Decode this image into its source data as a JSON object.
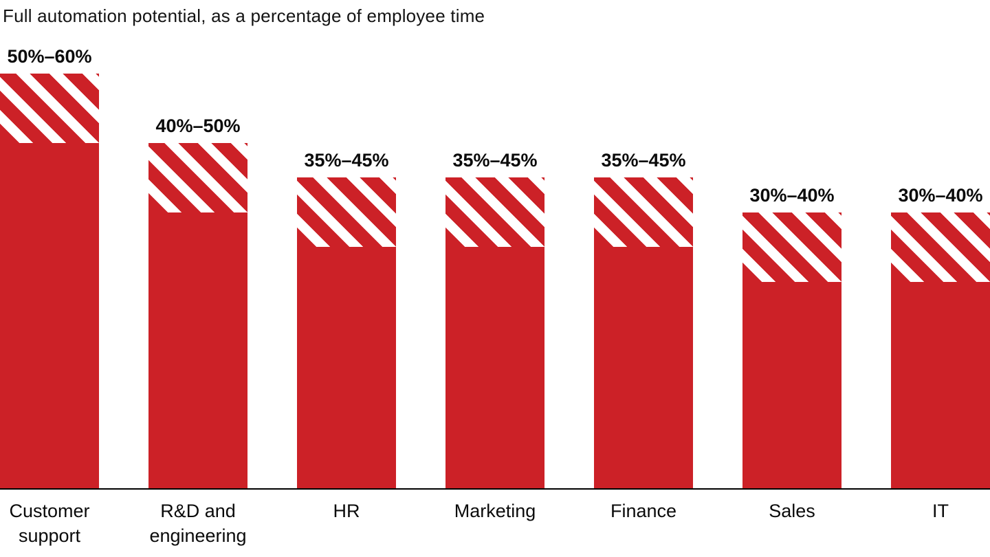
{
  "chart_data": {
    "type": "bar",
    "title": "Full automation potential, as a percentage of employee time",
    "categories": [
      "Customer\nsupport",
      "R&D and\nengineering",
      "HR",
      "Marketing",
      "Finance",
      "Sales",
      "IT"
    ],
    "series": [
      {
        "name": "Lower bound of automation potential (solid bar)",
        "values": [
          50,
          40,
          35,
          35,
          35,
          30,
          30
        ]
      },
      {
        "name": "Upper bound of automation potential (diagonal-striped cap)",
        "values": [
          60,
          50,
          45,
          45,
          45,
          40,
          40
        ]
      }
    ],
    "value_labels": [
      "50%–60%",
      "40%–50%",
      "35%–45%",
      "35%–45%",
      "35%–45%",
      "30%–40%",
      "30%–40%"
    ],
    "unit": "% of employee time",
    "xlabel": "",
    "ylabel": "",
    "ylim": [
      0,
      60
    ],
    "grid": false,
    "legend": "none",
    "annotation_style": "solid bar = lower bound; striped top segment = range up to upper bound"
  },
  "colors": {
    "bar_red": "#cc2127",
    "text": "#0b0b0b",
    "title_text": "#141414",
    "axis": "#000000",
    "background": "#ffffff"
  }
}
